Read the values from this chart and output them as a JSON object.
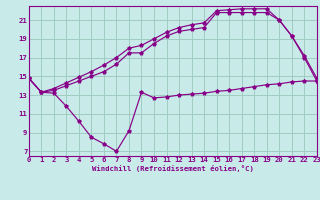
{
  "bg_color": "#c8eae8",
  "grid_color": "#a0ccc0",
  "line_color": "#880088",
  "xlim": [
    0,
    23
  ],
  "ylim": [
    6.5,
    22.5
  ],
  "xticks": [
    0,
    1,
    2,
    3,
    4,
    5,
    6,
    7,
    8,
    9,
    10,
    11,
    12,
    13,
    14,
    15,
    16,
    17,
    18,
    19,
    20,
    21,
    22,
    23
  ],
  "yticks": [
    7,
    9,
    11,
    13,
    15,
    17,
    19,
    21
  ],
  "xlabel": "Windchill (Refroidissement éolien,°C)",
  "series": [
    {
      "x": [
        0,
        1,
        2,
        3,
        4,
        5,
        6,
        7,
        8,
        9,
        10,
        11,
        12,
        13,
        14,
        15,
        16,
        17,
        18,
        19,
        20,
        21,
        22,
        23
      ],
      "y": [
        14.8,
        13.3,
        13.2,
        11.8,
        10.2,
        8.5,
        7.8,
        7.0,
        9.2,
        13.3,
        12.7,
        12.8,
        13.0,
        13.1,
        13.2,
        13.4,
        13.5,
        13.7,
        13.9,
        14.1,
        14.2,
        14.4,
        14.5,
        14.5
      ]
    },
    {
      "x": [
        0,
        1,
        2,
        3,
        4,
        5,
        6,
        7,
        8,
        9,
        10,
        11,
        12,
        13,
        14,
        15,
        16,
        17,
        18,
        19,
        20,
        21,
        22,
        23
      ],
      "y": [
        14.8,
        13.3,
        13.5,
        14.0,
        14.5,
        15.0,
        15.5,
        16.3,
        17.5,
        17.5,
        18.5,
        19.3,
        19.8,
        20.0,
        20.2,
        21.8,
        21.8,
        21.8,
        21.8,
        21.8,
        21.0,
        19.3,
        17.0,
        14.5
      ]
    },
    {
      "x": [
        0,
        1,
        2,
        3,
        4,
        5,
        6,
        7,
        8,
        9,
        10,
        11,
        12,
        13,
        14,
        15,
        16,
        17,
        18,
        19,
        20,
        21,
        22,
        23
      ],
      "y": [
        14.8,
        13.3,
        13.7,
        14.3,
        14.9,
        15.5,
        16.2,
        17.0,
        18.0,
        18.3,
        19.0,
        19.7,
        20.2,
        20.5,
        20.7,
        22.0,
        22.1,
        22.2,
        22.2,
        22.2,
        21.0,
        19.3,
        17.2,
        14.8
      ]
    }
  ]
}
